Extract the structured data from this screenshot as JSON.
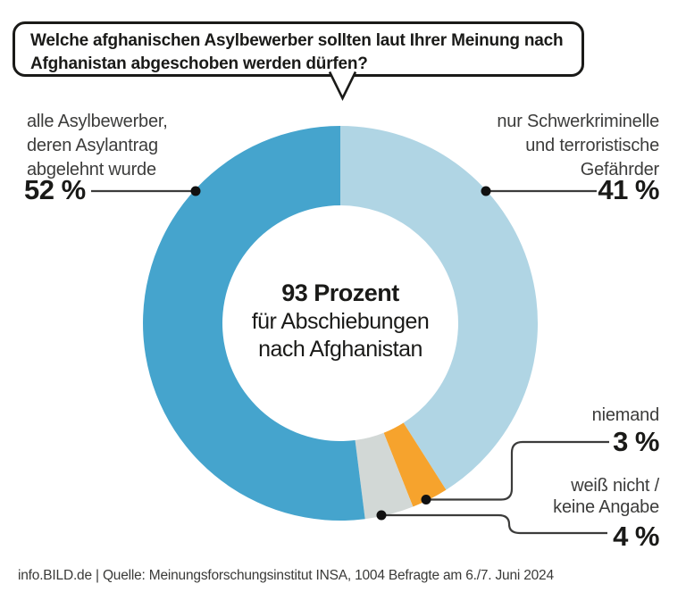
{
  "question_bubble": {
    "text": "Welche afghanischen Asylbewerber sollten laut Ihrer Meinung nach Afghanistan abgeschoben werden dürfen?"
  },
  "chart_data": {
    "type": "pie",
    "subtype": "donut",
    "unit": "%",
    "start_angle_deg": 0,
    "direction": "clockwise",
    "segments": [
      {
        "label": "nur Schwerkriminelle und terroristische Gefährder",
        "value": 41,
        "color": "#b0d5e4"
      },
      {
        "label": "niemand",
        "value": 3,
        "color": "#f6a32d"
      },
      {
        "label": "weiß nicht / keine Angabe",
        "value": 4,
        "color": "#d2d8d6"
      },
      {
        "label": "alle Asylbewerber, deren Asylantrag abgelehnt wurde",
        "value": 52,
        "color": "#45a4cd"
      }
    ],
    "center_text": {
      "line1": "93 Prozent",
      "line2": "für Abschiebungen",
      "line3": "nach Afghanistan"
    }
  },
  "callouts": {
    "left": {
      "line1": "alle Asylbewerber,",
      "line2": "deren Asylantrag",
      "line3": "abgelehnt wurde",
      "value": "52 %"
    },
    "right": {
      "line1": "nur Schwerkriminelle",
      "line2": "und terroristische",
      "line3": "Gefährder",
      "value": "41 %"
    },
    "niemand": {
      "label": "niemand",
      "value": "3 %"
    },
    "weiss_nicht": {
      "line1": "weiß nicht /",
      "line2": "keine Angabe",
      "value": "4 %"
    }
  },
  "footer": {
    "text": "info.BILD.de | Quelle: Meinungsforschungsinstitut INSA, 1004 Befragte am 6./7. Juni 2024"
  },
  "style": {
    "accent_dark_blue": "#45a4cd",
    "accent_light_blue": "#b0d5e4",
    "accent_orange": "#f6a32d",
    "accent_gray": "#d2d8d6",
    "line_color": "#3c3c3b",
    "text_color": "#1a1a18"
  }
}
